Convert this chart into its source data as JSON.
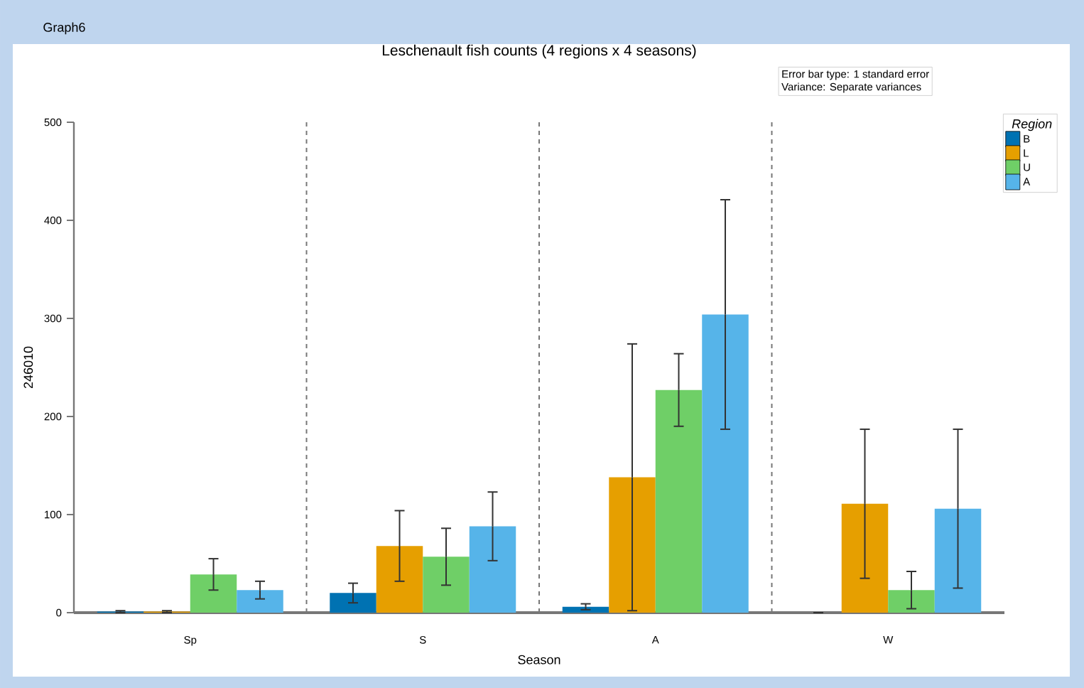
{
  "chart_data": {
    "type": "bar",
    "title": "Leschenault fish counts (4 regions x 4 seasons)",
    "xlabel": "Season",
    "ylabel": "246010",
    "legend_title": "Region",
    "categories": [
      "Sp",
      "S",
      "A",
      "W"
    ],
    "series": [
      {
        "name": "B",
        "color": "#0072b2",
        "values": [
          1,
          20,
          6,
          0
        ],
        "errors": [
          1,
          10,
          3,
          0
        ]
      },
      {
        "name": "L",
        "color": "#e69f00",
        "values": [
          1,
          68,
          138,
          111
        ],
        "errors": [
          1,
          36,
          136,
          76
        ]
      },
      {
        "name": "U",
        "color": "#6fcf67",
        "values": [
          39,
          57,
          227,
          23
        ],
        "errors": [
          16,
          29,
          37,
          19
        ]
      },
      {
        "name": "A",
        "color": "#56b4e9",
        "values": [
          23,
          88,
          304,
          106
        ],
        "errors": [
          9,
          35,
          117,
          81
        ]
      }
    ],
    "ylim": [
      0,
      500
    ],
    "yticks": [
      0,
      100,
      200,
      300,
      400,
      500
    ],
    "grid": "x",
    "legend": "top right",
    "annotations": [
      "Graph6",
      "Error bar type: 1 standard error",
      "Variance: Separate variances"
    ]
  }
}
